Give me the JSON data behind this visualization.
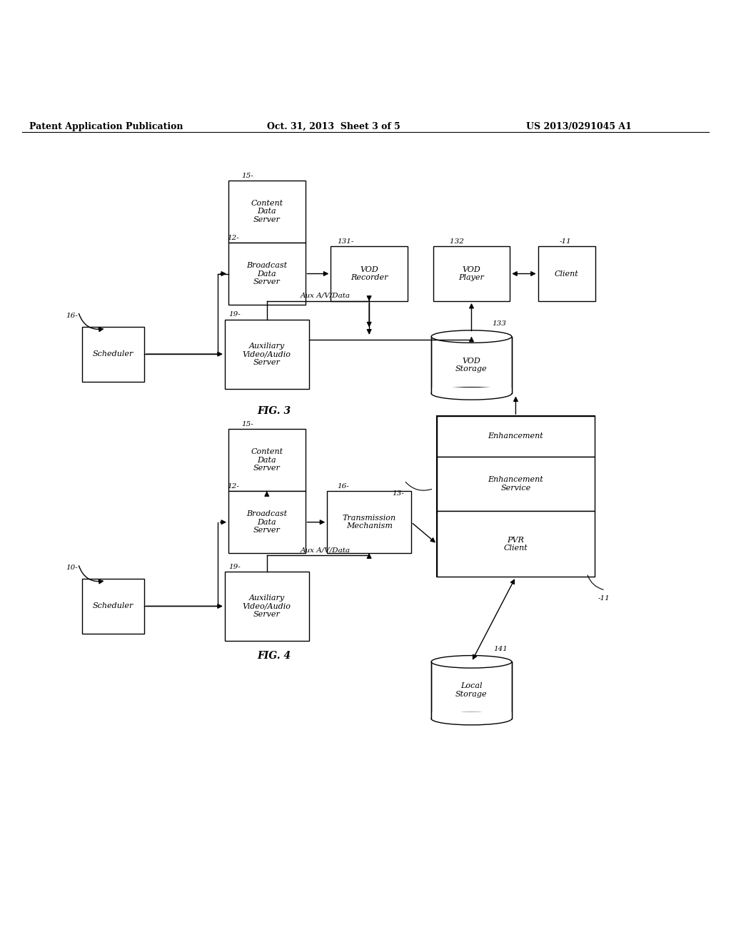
{
  "header_left": "Patent Application Publication",
  "header_mid": "Oct. 31, 2013  Sheet 3 of 5",
  "header_right": "US 2013/0291045 A1",
  "fig3_label": "FIG. 3",
  "fig4_label": "FIG. 4",
  "background": "#ffffff",
  "box_color": "#ffffff",
  "box_edge": "#000000",
  "text_color": "#000000"
}
